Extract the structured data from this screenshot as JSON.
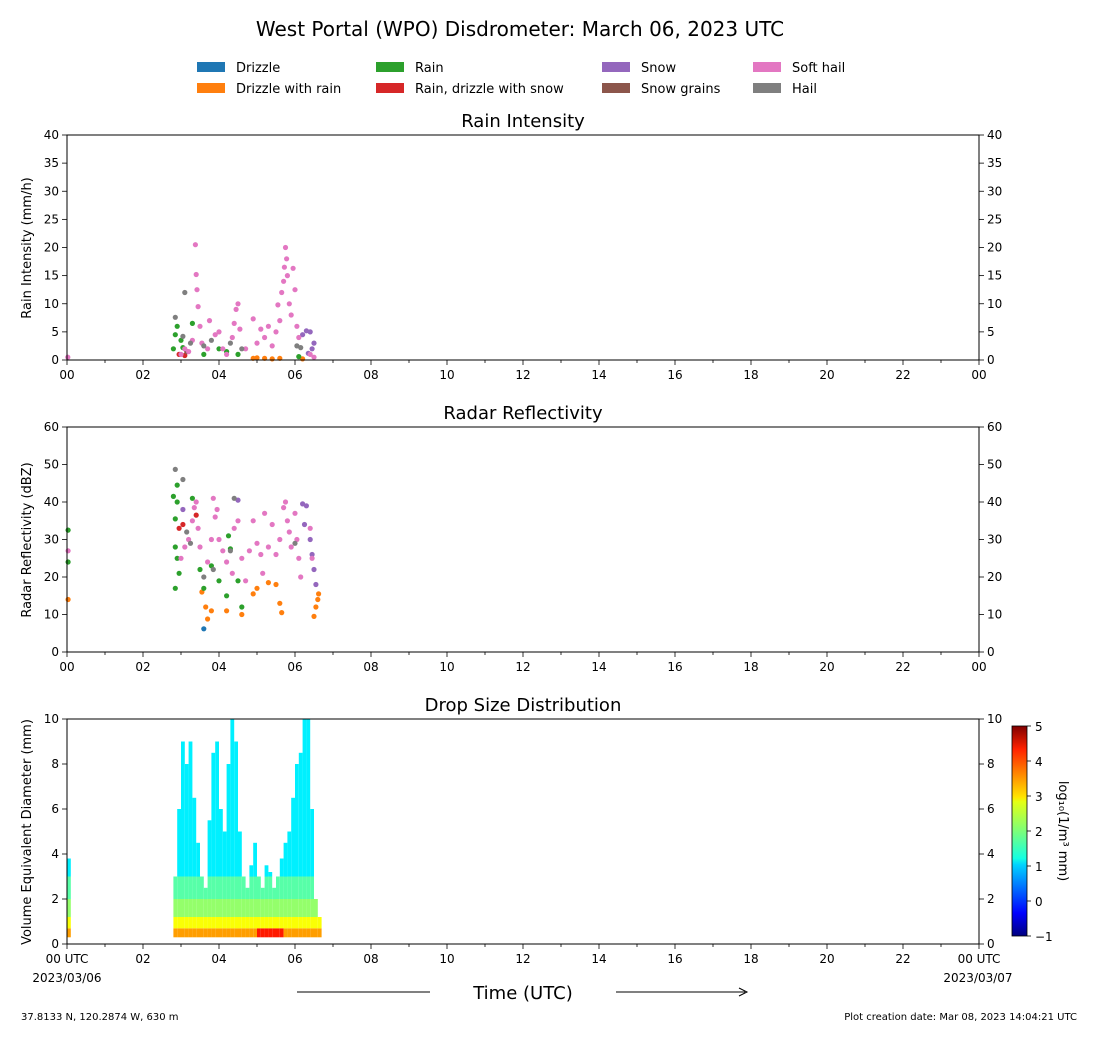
{
  "title": "West Portal (WPO) Disdrometer: March 06, 2023 UTC",
  "legend": [
    {
      "label": "Drizzle",
      "color": "#1f77b4"
    },
    {
      "label": "Drizzle with rain",
      "color": "#ff7f0e"
    },
    {
      "label": "Rain",
      "color": "#2ca02c"
    },
    {
      "label": "Rain, drizzle with snow",
      "color": "#d62728"
    },
    {
      "label": "Snow",
      "color": "#9467bd"
    },
    {
      "label": "Snow grains",
      "color": "#8c564b"
    },
    {
      "label": "Soft hail",
      "color": "#e377c2"
    },
    {
      "label": "Hail",
      "color": "#7f7f7f"
    }
  ],
  "x_tick_labels": [
    "00",
    "02",
    "04",
    "06",
    "08",
    "10",
    "12",
    "14",
    "16",
    "18",
    "20",
    "22",
    "00"
  ],
  "bottom_x_tick_labels": [
    "00 UTC",
    "02",
    "04",
    "06",
    "08",
    "10",
    "12",
    "14",
    "16",
    "18",
    "20",
    "22",
    "00 UTC"
  ],
  "start_date": "2023/03/06",
  "end_date": "2023/03/07",
  "x_axis_label": "Time (UTC)",
  "footer_left": "37.8133 N, 120.2874 W, 630 m",
  "footer_right": "Plot creation date: Mar 08, 2023 14:04:21 UTC",
  "chart_data": [
    {
      "type": "scatter",
      "title": "Rain Intensity",
      "ylabel": "Rain Intensity (mm/h)",
      "xlim": [
        0,
        24
      ],
      "ylim": [
        0,
        40
      ],
      "y_ticks": [
        0,
        5,
        10,
        15,
        20,
        25,
        30,
        35,
        40
      ],
      "series": [
        {
          "name": "Drizzle",
          "color": "#1f77b4",
          "points": []
        },
        {
          "name": "Drizzle with rain",
          "color": "#ff7f0e",
          "points": [
            [
              4.9,
              0.3
            ],
            [
              5.0,
              0.4
            ],
            [
              5.2,
              0.3
            ],
            [
              5.4,
              0.2
            ],
            [
              5.6,
              0.3
            ],
            [
              6.2,
              0.2
            ]
          ]
        },
        {
          "name": "Rain",
          "color": "#2ca02c",
          "points": [
            [
              2.8,
              2.0
            ],
            [
              2.85,
              4.5
            ],
            [
              2.9,
              6.0
            ],
            [
              3.0,
              3.5
            ],
            [
              3.05,
              2.2
            ],
            [
              3.3,
              6.5
            ],
            [
              3.6,
              1.0
            ],
            [
              4.0,
              2.0
            ],
            [
              4.2,
              1.5
            ],
            [
              4.5,
              1.0
            ],
            [
              6.1,
              0.6
            ]
          ]
        },
        {
          "name": "Rain, drizzle with snow",
          "color": "#d62728",
          "points": [
            [
              2.95,
              1.0
            ],
            [
              3.1,
              0.8
            ]
          ]
        },
        {
          "name": "Snow",
          "color": "#9467bd",
          "points": [
            [
              6.2,
              4.5
            ],
            [
              6.3,
              5.2
            ],
            [
              6.4,
              5.0
            ],
            [
              6.5,
              3.0
            ],
            [
              6.45,
              2.0
            ],
            [
              6.35,
              1.2
            ]
          ]
        },
        {
          "name": "Snow grains",
          "color": "#8c564b",
          "points": [
            [
              3.15,
              1.5
            ]
          ]
        },
        {
          "name": "Soft hail",
          "color": "#e377c2",
          "points": [
            [
              0.02,
              0.5
            ],
            [
              3.0,
              1.0
            ],
            [
              3.1,
              2.0
            ],
            [
              3.2,
              1.5
            ],
            [
              3.3,
              3.5
            ],
            [
              3.38,
              20.5
            ],
            [
              3.4,
              15.2
            ],
            [
              3.42,
              12.5
            ],
            [
              3.45,
              9.5
            ],
            [
              3.5,
              6.0
            ],
            [
              3.55,
              3.0
            ],
            [
              3.7,
              2.0
            ],
            [
              3.75,
              7.0
            ],
            [
              3.9,
              4.5
            ],
            [
              4.0,
              5.0
            ],
            [
              4.1,
              2.0
            ],
            [
              4.2,
              1.0
            ],
            [
              4.35,
              4.0
            ],
            [
              4.4,
              6.5
            ],
            [
              4.45,
              9.0
            ],
            [
              4.5,
              10.0
            ],
            [
              4.55,
              5.5
            ],
            [
              4.7,
              2.0
            ],
            [
              4.9,
              7.3
            ],
            [
              5.0,
              3.0
            ],
            [
              5.1,
              5.5
            ],
            [
              5.2,
              4.0
            ],
            [
              5.3,
              6.0
            ],
            [
              5.4,
              2.5
            ],
            [
              5.5,
              5.0
            ],
            [
              5.55,
              9.8
            ],
            [
              5.6,
              7.0
            ],
            [
              5.65,
              12.0
            ],
            [
              5.7,
              14.0
            ],
            [
              5.72,
              16.5
            ],
            [
              5.75,
              20.0
            ],
            [
              5.78,
              18.0
            ],
            [
              5.8,
              15.0
            ],
            [
              5.85,
              10.0
            ],
            [
              5.9,
              8.0
            ],
            [
              5.95,
              16.3
            ],
            [
              6.0,
              12.5
            ],
            [
              6.05,
              6.0
            ],
            [
              6.1,
              4.0
            ],
            [
              6.4,
              1.0
            ],
            [
              6.5,
              0.5
            ]
          ]
        },
        {
          "name": "Hail",
          "color": "#7f7f7f",
          "points": [
            [
              2.85,
              7.6
            ],
            [
              3.05,
              4.2
            ],
            [
              3.1,
              12.0
            ],
            [
              3.25,
              3.0
            ],
            [
              3.6,
              2.5
            ],
            [
              3.8,
              3.5
            ],
            [
              4.3,
              3.0
            ],
            [
              4.6,
              2.0
            ],
            [
              6.05,
              2.5
            ],
            [
              6.15,
              2.2
            ]
          ]
        }
      ]
    },
    {
      "type": "scatter",
      "title": "Radar Reflectivity",
      "ylabel": "Radar Reflectivity (dBZ)",
      "xlim": [
        0,
        24
      ],
      "ylim": [
        0,
        60
      ],
      "y_ticks": [
        0,
        10,
        20,
        30,
        40,
        50,
        60
      ],
      "series": [
        {
          "name": "Drizzle",
          "color": "#1f77b4",
          "points": [
            [
              3.6,
              6.2
            ]
          ]
        },
        {
          "name": "Drizzle with rain",
          "color": "#ff7f0e",
          "points": [
            [
              0.03,
              14.0
            ],
            [
              3.55,
              16.0
            ],
            [
              3.65,
              12.0
            ],
            [
              3.7,
              8.8
            ],
            [
              3.8,
              11.0
            ],
            [
              4.2,
              11.0
            ],
            [
              4.6,
              10.0
            ],
            [
              4.9,
              15.5
            ],
            [
              5.0,
              17.0
            ],
            [
              5.3,
              18.5
            ],
            [
              5.5,
              18.0
            ],
            [
              5.65,
              10.5
            ],
            [
              5.6,
              13.0
            ],
            [
              6.5,
              9.5
            ],
            [
              6.55,
              12.0
            ],
            [
              6.6,
              14.0
            ],
            [
              6.62,
              15.5
            ]
          ]
        },
        {
          "name": "Rain",
          "color": "#2ca02c",
          "points": [
            [
              0.03,
              24.0
            ],
            [
              0.03,
              32.5
            ],
            [
              2.8,
              41.5
            ],
            [
              2.85,
              35.5
            ],
            [
              2.9,
              44.5
            ],
            [
              2.9,
              40.0
            ],
            [
              2.85,
              28.0
            ],
            [
              2.9,
              25.0
            ],
            [
              2.95,
              21.0
            ],
            [
              2.85,
              17.0
            ],
            [
              3.3,
              41.0
            ],
            [
              3.5,
              22.0
            ],
            [
              3.6,
              17.0
            ],
            [
              3.8,
              23.0
            ],
            [
              4.0,
              19.0
            ],
            [
              4.2,
              15.0
            ],
            [
              4.25,
              31.0
            ],
            [
              4.3,
              27.5
            ],
            [
              4.5,
              19.0
            ],
            [
              4.6,
              12.0
            ]
          ]
        },
        {
          "name": "Rain, drizzle with snow",
          "color": "#d62728",
          "points": [
            [
              2.95,
              33.0
            ],
            [
              3.05,
              34.0
            ],
            [
              3.4,
              36.5
            ]
          ]
        },
        {
          "name": "Snow",
          "color": "#9467bd",
          "points": [
            [
              3.05,
              38.0
            ],
            [
              4.5,
              40.5
            ],
            [
              6.2,
              39.5
            ],
            [
              6.3,
              39.0
            ],
            [
              6.25,
              34.0
            ],
            [
              6.4,
              30.0
            ],
            [
              6.45,
              26.0
            ],
            [
              6.5,
              22.0
            ],
            [
              6.55,
              18.0
            ]
          ]
        },
        {
          "name": "Snow grains",
          "color": "#8c564b",
          "points": []
        },
        {
          "name": "Soft hail",
          "color": "#e377c2",
          "points": [
            [
              0.03,
              27.0
            ],
            [
              3.0,
              25.0
            ],
            [
              3.1,
              28.0
            ],
            [
              3.2,
              30.0
            ],
            [
              3.3,
              35.0
            ],
            [
              3.35,
              38.5
            ],
            [
              3.4,
              40.0
            ],
            [
              3.45,
              33.0
            ],
            [
              3.5,
              28.0
            ],
            [
              3.7,
              24.0
            ],
            [
              3.8,
              30.0
            ],
            [
              3.85,
              41.0
            ],
            [
              3.9,
              36.0
            ],
            [
              3.95,
              38.0
            ],
            [
              4.0,
              30.0
            ],
            [
              4.1,
              27.0
            ],
            [
              4.2,
              24.0
            ],
            [
              4.35,
              21.0
            ],
            [
              4.4,
              33.0
            ],
            [
              4.5,
              35.0
            ],
            [
              4.6,
              25.0
            ],
            [
              4.7,
              19.0
            ],
            [
              4.8,
              27.0
            ],
            [
              4.9,
              35.0
            ],
            [
              5.0,
              29.0
            ],
            [
              5.1,
              26.0
            ],
            [
              5.15,
              21.0
            ],
            [
              5.2,
              37.0
            ],
            [
              5.3,
              28.0
            ],
            [
              5.4,
              34.0
            ],
            [
              5.5,
              26.0
            ],
            [
              5.6,
              30.0
            ],
            [
              5.7,
              38.5
            ],
            [
              5.75,
              40.0
            ],
            [
              5.8,
              35.0
            ],
            [
              5.85,
              32.0
            ],
            [
              5.9,
              28.0
            ],
            [
              6.0,
              37.0
            ],
            [
              6.05,
              30.0
            ],
            [
              6.1,
              25.0
            ],
            [
              6.15,
              20.0
            ],
            [
              6.4,
              33.0
            ],
            [
              6.45,
              25.0
            ]
          ]
        },
        {
          "name": "Hail",
          "color": "#7f7f7f",
          "points": [
            [
              2.85,
              48.7
            ],
            [
              3.05,
              46.0
            ],
            [
              3.15,
              32.0
            ],
            [
              3.25,
              29.0
            ],
            [
              3.6,
              20.0
            ],
            [
              3.85,
              22.0
            ],
            [
              4.3,
              27.0
            ],
            [
              4.4,
              41.0
            ],
            [
              6.0,
              29.0
            ]
          ]
        }
      ]
    },
    {
      "type": "heatmap",
      "title": "Drop Size Distribution",
      "ylabel": "Volume Equivalent Diameter (mm)",
      "xlim": [
        0,
        24
      ],
      "ylim": [
        0,
        10
      ],
      "y_ticks": [
        0,
        2,
        4,
        6,
        8,
        10
      ],
      "colorbar": {
        "label": "log₁₀(1/m³ mm)",
        "min": -1,
        "max": 5,
        "ticks": [
          -1,
          0,
          1,
          2,
          3,
          4,
          5
        ]
      },
      "columns": [
        {
          "t": 0.0,
          "top": 3.8
        },
        {
          "t": 2.8,
          "top": 3.0
        },
        {
          "t": 2.9,
          "top": 6.0
        },
        {
          "t": 3.0,
          "top": 9.0
        },
        {
          "t": 3.1,
          "top": 8.0
        },
        {
          "t": 3.2,
          "top": 9.0
        },
        {
          "t": 3.3,
          "top": 6.5
        },
        {
          "t": 3.4,
          "top": 4.5
        },
        {
          "t": 3.5,
          "top": 3.0
        },
        {
          "t": 3.6,
          "top": 2.5
        },
        {
          "t": 3.7,
          "top": 5.5
        },
        {
          "t": 3.8,
          "top": 8.5
        },
        {
          "t": 3.9,
          "top": 9.0
        },
        {
          "t": 4.0,
          "top": 6.0
        },
        {
          "t": 4.1,
          "top": 5.0
        },
        {
          "t": 4.2,
          "top": 8.0
        },
        {
          "t": 4.3,
          "top": 10.0
        },
        {
          "t": 4.4,
          "top": 9.0
        },
        {
          "t": 4.5,
          "top": 5.0
        },
        {
          "t": 4.6,
          "top": 3.0
        },
        {
          "t": 4.7,
          "top": 2.5
        },
        {
          "t": 4.8,
          "top": 3.5
        },
        {
          "t": 4.9,
          "top": 4.5
        },
        {
          "t": 5.0,
          "top": 3.0
        },
        {
          "t": 5.1,
          "top": 2.5
        },
        {
          "t": 5.2,
          "top": 3.5
        },
        {
          "t": 5.3,
          "top": 3.2
        },
        {
          "t": 5.4,
          "top": 2.5
        },
        {
          "t": 5.5,
          "top": 3.0
        },
        {
          "t": 5.6,
          "top": 3.8
        },
        {
          "t": 5.7,
          "top": 4.5
        },
        {
          "t": 5.8,
          "top": 5.0
        },
        {
          "t": 5.9,
          "top": 6.5
        },
        {
          "t": 6.0,
          "top": 8.0
        },
        {
          "t": 6.1,
          "top": 8.5
        },
        {
          "t": 6.2,
          "top": 10.0
        },
        {
          "t": 6.3,
          "top": 10.0
        },
        {
          "t": 6.4,
          "top": 6.0
        },
        {
          "t": 6.5,
          "top": 2.0
        },
        {
          "t": 6.6,
          "top": 1.2
        }
      ]
    }
  ]
}
